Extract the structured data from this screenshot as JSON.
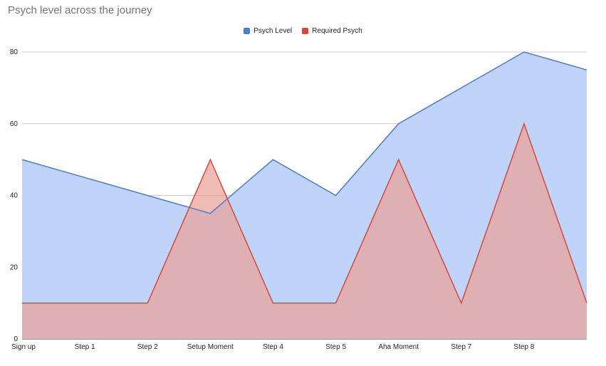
{
  "chart_data": {
    "type": "area",
    "title": "Psych level across the journey",
    "xlabel": "",
    "ylabel": "",
    "ylim": [
      0,
      80
    ],
    "yticks": [
      0,
      20,
      40,
      60,
      80
    ],
    "grid": true,
    "legend_position": "top-center",
    "categories": [
      "Sign up",
      "Step 1",
      "Step 2",
      "Setup Moment",
      "Step 4",
      "Step 5",
      "Aha Moment",
      "Step 7",
      "Step 8",
      ""
    ],
    "series": [
      {
        "name": "Psych Level",
        "color": "#4a7bd9",
        "fill": "#c0d3f8",
        "values": [
          50,
          45,
          40,
          35,
          50,
          40,
          60,
          70,
          80,
          75
        ]
      },
      {
        "name": "Required Psych",
        "color": "#d8483a",
        "fill": "#e8a49c",
        "values": [
          10,
          10,
          10,
          50,
          10,
          10,
          50,
          10,
          60,
          10
        ]
      }
    ]
  }
}
